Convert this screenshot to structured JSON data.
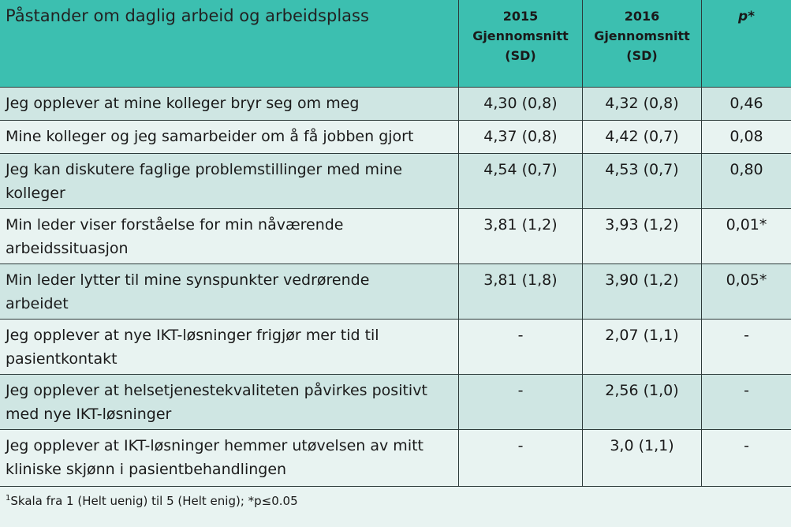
{
  "header": {
    "title": "Påstander om daglig arbeid og arbeidsplass",
    "col_2015": "2015\nGjennomsnitt\n(SD)",
    "col_2016": "2016\nGjennomsnitt\n(SD)",
    "col_p": "p*"
  },
  "rows": [
    {
      "statement": "Jeg opplever at mine kolleger bryr seg om meg",
      "v2015": "4,30 (0,8)",
      "v2016": "4,32 (0,8)",
      "p": "0,46"
    },
    {
      "statement": "Mine kolleger og jeg samarbeider om å få jobben gjort",
      "v2015": "4,37 (0,8)",
      "v2016": "4,42 (0,7)",
      "p": "0,08"
    },
    {
      "statement": "Jeg kan diskutere faglige problemstillinger med mine\nkolleger",
      "v2015": "4,54 (0,7)",
      "v2016": "4,53 (0,7)",
      "p": "0,80"
    },
    {
      "statement": "Min leder viser forståelse for min nåværende\narbeidssituasjon",
      "v2015": "3,81 (1,2)",
      "v2016": "3,93 (1,2)",
      "p": "0,01*"
    },
    {
      "statement": "Min leder lytter til mine synspunkter vedrørende\narbeidet",
      "v2015": "3,81 (1,8)",
      "v2016": "3,90 (1,2)",
      "p": "0,05*"
    },
    {
      "statement": " Jeg opplever at nye IKT-løsninger frigjør mer tid til\npasientkontakt",
      "v2015": "-",
      "v2016": "2,07 (1,1)",
      "p": "-"
    },
    {
      "statement": " Jeg opplever at helsetjenestekvaliteten påvirkes positivt\nmed nye IKT-løsninger",
      "v2015": "-",
      "v2016": "2,56 (1,0)",
      "p": "-"
    },
    {
      "statement": " Jeg opplever at IKT-løsninger hemmer utøvelsen av mitt\nkliniske skjønn i pasientbehandlingen",
      "v2015": "-",
      "v2016": "3,0 (1,1)",
      "p": "-"
    }
  ],
  "footer": {
    "superscript": "1",
    "text": "Skala fra 1 (Helt uenig) til 5 (Helt enig); *p≤0.05"
  },
  "colors": {
    "header_bg": "#3cbfb0",
    "row_dark": "#cfe6e3",
    "row_light": "#e8f3f1",
    "border": "#2d3b3a"
  }
}
